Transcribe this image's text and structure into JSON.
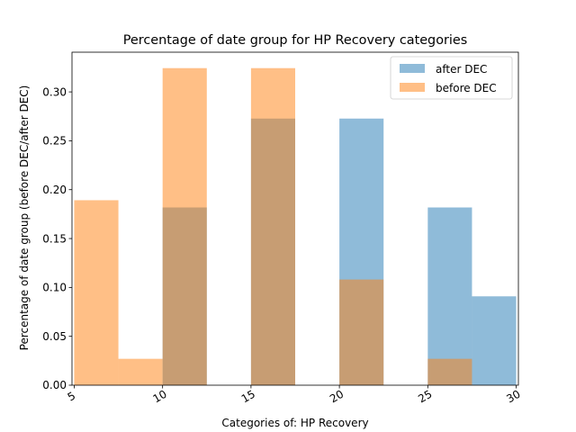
{
  "chart_data": {
    "type": "bar",
    "title": "Percentage of date group for HP Recovery categories",
    "xlabel": "Categories of: HP Recovery",
    "ylabel": "Percentage of date group (before DEC/after DEC)",
    "xlim": [
      4.875,
      30.125
    ],
    "ylim": [
      0,
      0.3406
    ],
    "x_ticks": [
      5,
      10,
      15,
      20,
      25,
      30
    ],
    "y_ticks": [
      0.0,
      0.05,
      0.1,
      0.15,
      0.2,
      0.25,
      0.3
    ],
    "bin_edges": [
      5,
      7.5,
      10,
      12.5,
      15,
      17.5,
      20,
      22.5,
      25,
      27.5,
      30
    ],
    "series": [
      {
        "name": "after DEC",
        "color": "#1f77b4",
        "alpha": 0.5,
        "values": [
          0,
          0,
          0.1818,
          0,
          0.2727,
          0,
          0.2727,
          0,
          0.1818,
          0.0909
        ]
      },
      {
        "name": "before DEC",
        "color": "#ff7f0e",
        "alpha": 0.5,
        "values": [
          0.1892,
          0.027,
          0.3243,
          0,
          0.3243,
          0,
          0.1081,
          0,
          0.027,
          0
        ]
      }
    ],
    "legend": "top-right",
    "grid": false
  }
}
